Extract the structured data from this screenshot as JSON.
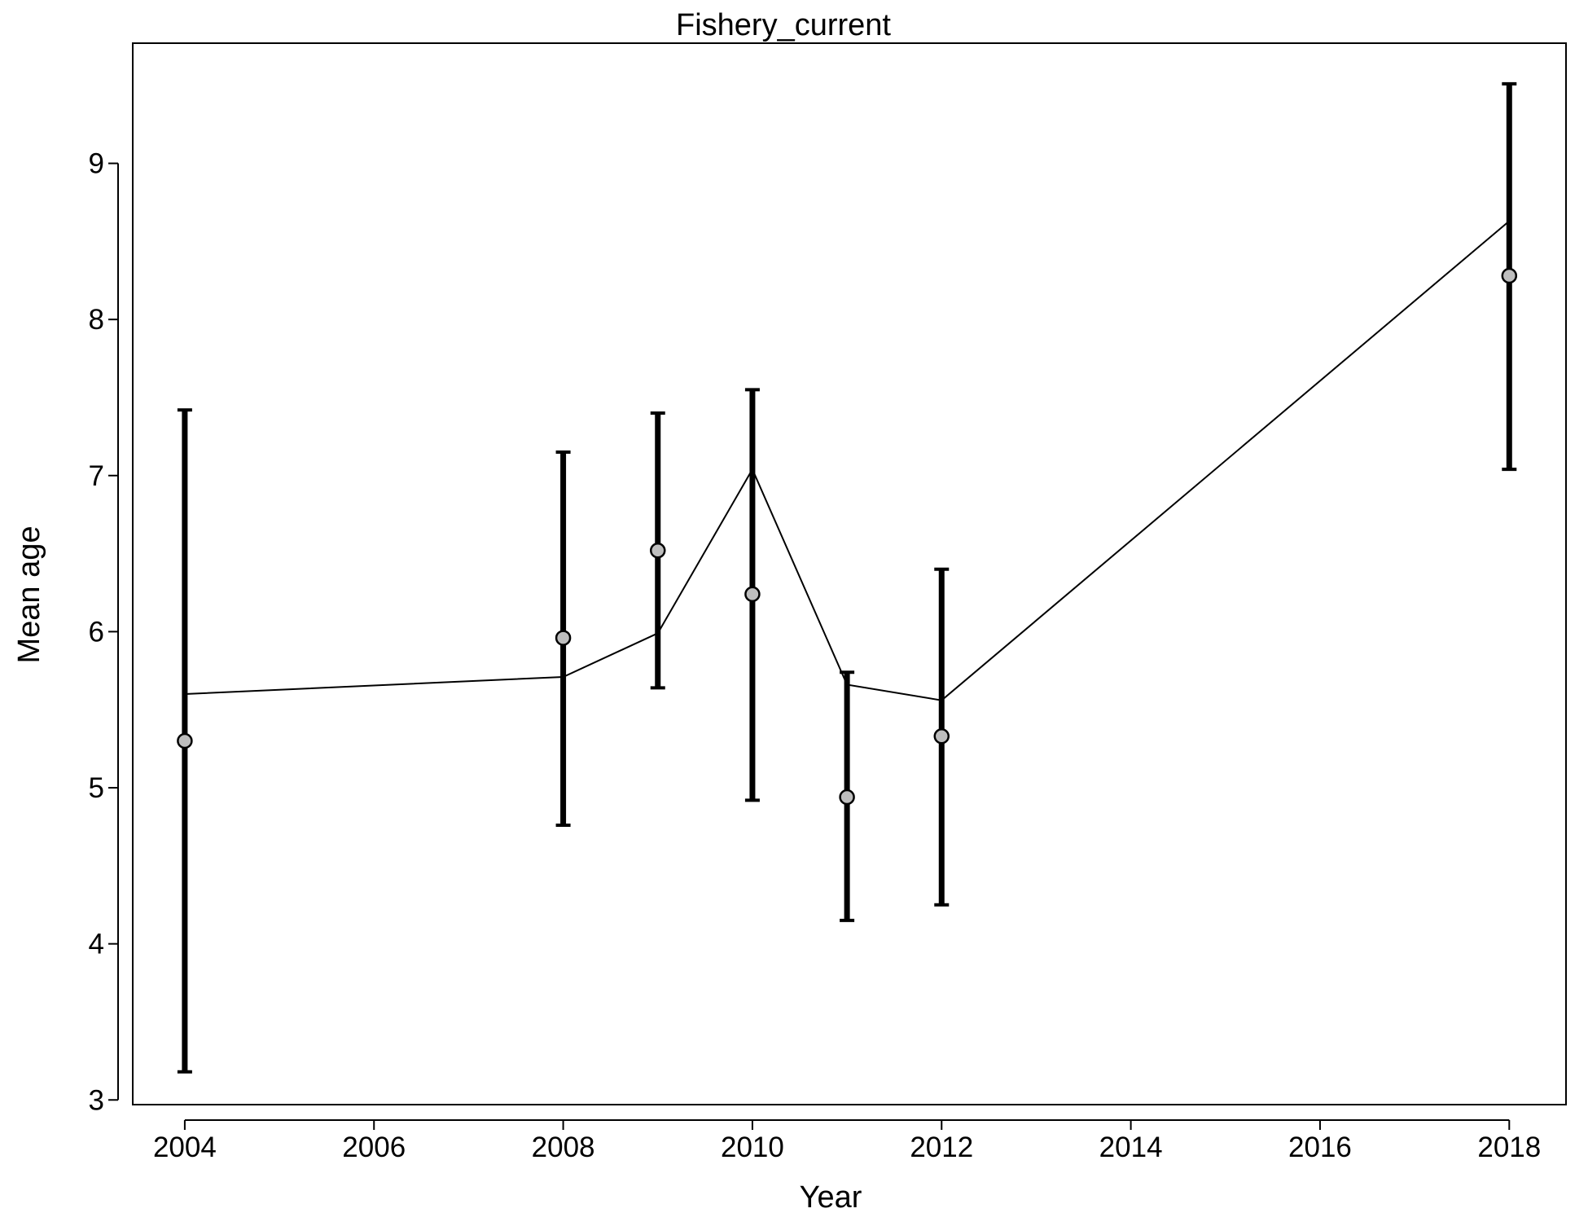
{
  "chart_data": {
    "type": "line",
    "title": "Fishery_current",
    "xlabel": "Year",
    "ylabel": "Mean age",
    "xlim": [
      2003.45,
      2018.6
    ],
    "ylim": [
      2.97,
      9.77
    ],
    "x_ticks": [
      2004,
      2006,
      2008,
      2010,
      2012,
      2014,
      2016,
      2018
    ],
    "x_tick_labels": [
      "2004",
      "2006",
      "2008",
      "2010",
      "2012",
      "2014",
      "2016",
      "2018"
    ],
    "y_ticks": [
      3,
      4,
      5,
      6,
      7,
      8,
      9
    ],
    "y_tick_labels": [
      "3",
      "4",
      "5",
      "6",
      "7",
      "8",
      "9"
    ],
    "grid": false,
    "series": [
      {
        "kind": "observed",
        "x": [
          2004,
          2008,
          2009,
          2010,
          2011,
          2012,
          2018
        ],
        "y": [
          5.3,
          5.96,
          6.52,
          6.24,
          4.94,
          5.33,
          8.28
        ],
        "lower": [
          3.18,
          4.76,
          5.64,
          4.92,
          4.15,
          4.25,
          7.04
        ],
        "upper": [
          7.42,
          7.15,
          7.4,
          7.55,
          5.74,
          6.4,
          9.51
        ],
        "marker_fill": "#bebebe",
        "marker_stroke": "#000000",
        "errorbar_color": "#000000"
      },
      {
        "kind": "expected",
        "x": [
          2004,
          2008,
          2009,
          2010,
          2011,
          2012,
          2018
        ],
        "y": [
          5.6,
          5.71,
          5.99,
          7.04,
          5.66,
          5.56,
          8.63
        ],
        "line_color": "#000000"
      }
    ]
  }
}
